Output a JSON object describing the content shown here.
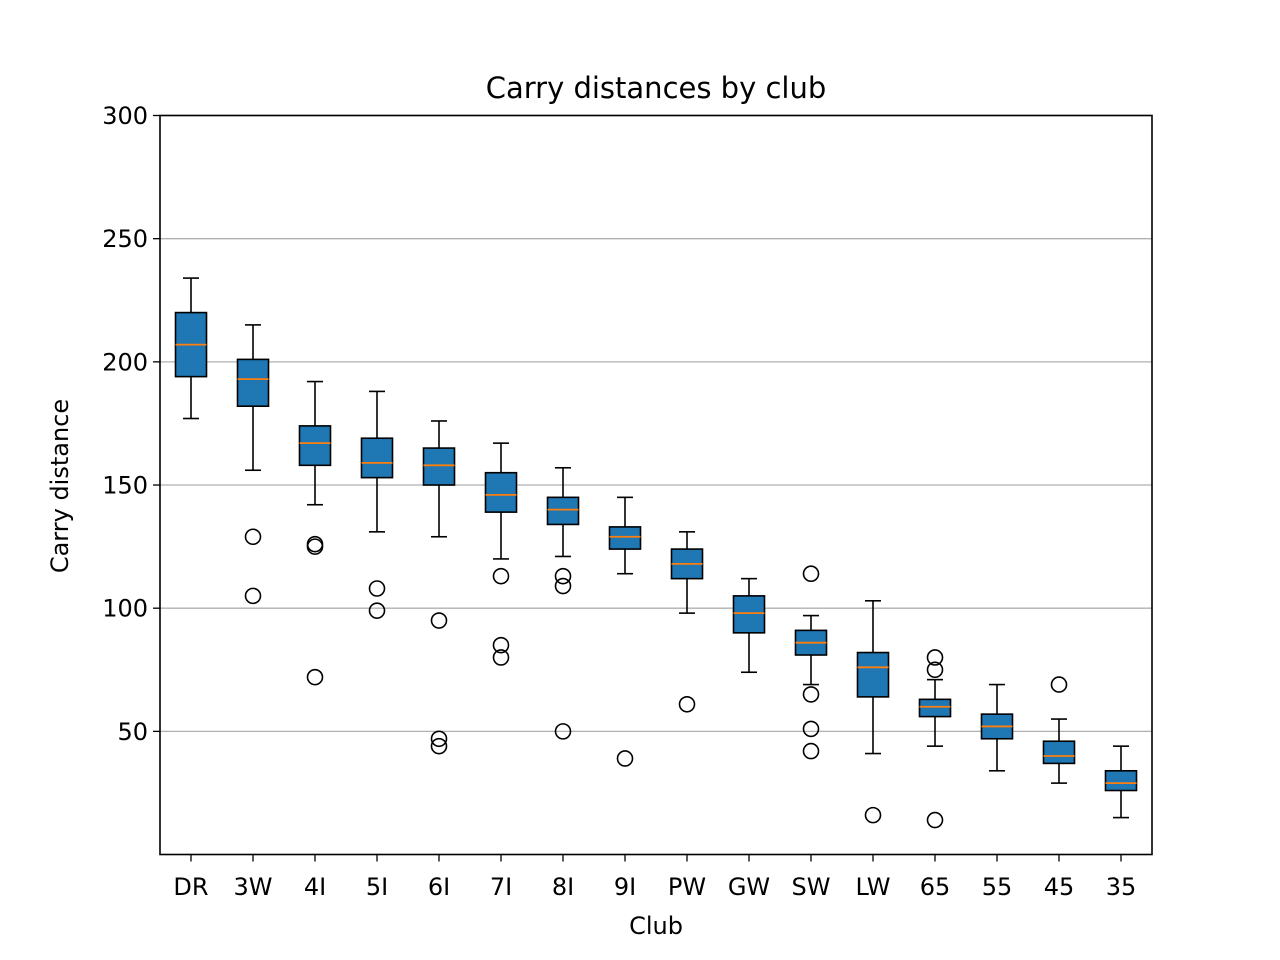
{
  "chart_data": {
    "type": "box",
    "title": "Carry distances by club",
    "xlabel": "Club",
    "ylabel": "Carry distance",
    "ylim": [
      0,
      300
    ],
    "yticks": [
      50,
      100,
      150,
      200,
      250,
      300
    ],
    "grid": "horizontal",
    "colors": {
      "box_fill": "#1f77b4",
      "median": "#ff7f0e",
      "grid": "#b0b0b0"
    },
    "categories": [
      "DR",
      "3W",
      "4I",
      "5I",
      "6I",
      "7I",
      "8I",
      "9I",
      "PW",
      "GW",
      "SW",
      "LW",
      "65",
      "55",
      "45",
      "35"
    ],
    "boxes": [
      {
        "whislo": 177,
        "q1": 194,
        "med": 207,
        "q3": 220,
        "whishi": 234,
        "fliers": []
      },
      {
        "whislo": 156,
        "q1": 182,
        "med": 193,
        "q3": 201,
        "whishi": 215,
        "fliers": [
          129,
          105
        ]
      },
      {
        "whislo": 142,
        "q1": 158,
        "med": 167,
        "q3": 174,
        "whishi": 192,
        "fliers": [
          126,
          125,
          72
        ]
      },
      {
        "whislo": 131,
        "q1": 153,
        "med": 159,
        "q3": 169,
        "whishi": 188,
        "fliers": [
          108,
          99
        ]
      },
      {
        "whislo": 129,
        "q1": 150,
        "med": 158,
        "q3": 165,
        "whishi": 176,
        "fliers": [
          95,
          47,
          44
        ]
      },
      {
        "whislo": 120,
        "q1": 139,
        "med": 146,
        "q3": 155,
        "whishi": 167,
        "fliers": [
          113,
          85,
          80
        ]
      },
      {
        "whislo": 121,
        "q1": 134,
        "med": 140,
        "q3": 145,
        "whishi": 157,
        "fliers": [
          113,
          109,
          50
        ]
      },
      {
        "whislo": 114,
        "q1": 124,
        "med": 129,
        "q3": 133,
        "whishi": 145,
        "fliers": [
          39
        ]
      },
      {
        "whislo": 98,
        "q1": 112,
        "med": 118,
        "q3": 124,
        "whishi": 131,
        "fliers": [
          61
        ]
      },
      {
        "whislo": 74,
        "q1": 90,
        "med": 98,
        "q3": 105,
        "whishi": 112,
        "fliers": []
      },
      {
        "whislo": 69,
        "q1": 81,
        "med": 86,
        "q3": 91,
        "whishi": 97,
        "fliers": [
          114,
          65,
          51,
          42
        ]
      },
      {
        "whislo": 41,
        "q1": 64,
        "med": 76,
        "q3": 82,
        "whishi": 103,
        "fliers": [
          16
        ]
      },
      {
        "whislo": 44,
        "q1": 56,
        "med": 60,
        "q3": 63,
        "whishi": 71,
        "fliers": [
          80,
          75,
          14
        ]
      },
      {
        "whislo": 34,
        "q1": 47,
        "med": 52,
        "q3": 57,
        "whishi": 69,
        "fliers": []
      },
      {
        "whislo": 29,
        "q1": 37,
        "med": 40,
        "q3": 46,
        "whishi": 55,
        "fliers": [
          69
        ]
      },
      {
        "whislo": 15,
        "q1": 26,
        "med": 29,
        "q3": 34,
        "whishi": 44,
        "fliers": []
      }
    ]
  }
}
